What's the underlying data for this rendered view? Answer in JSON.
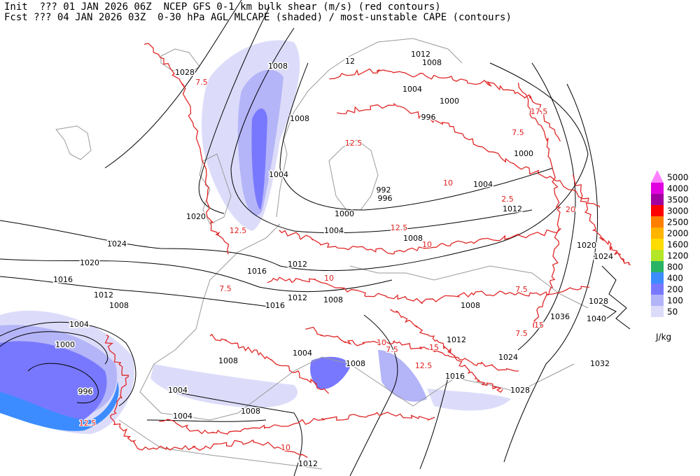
{
  "header": {
    "line1": "Init  ??? 01 JAN 2026 06Z  NCEP GFS 0-1 km bulk shear (m/s) (red contours)",
    "line2": "Fcst ??? 04 JAN 2026 03Z  0-30 hPa AGL MLCAPE (shaded) / most-unstable CAPE (contours)"
  },
  "legend": {
    "levels": [
      {
        "label": "5000",
        "color": "#ff80ff"
      },
      {
        "label": "4000",
        "color": "#e000e0"
      },
      {
        "label": "3500",
        "color": "#a000a0"
      },
      {
        "label": "3000",
        "color": "#ff0000"
      },
      {
        "label": "2500",
        "color": "#ff8000"
      },
      {
        "label": "2000",
        "color": "#ffb400"
      },
      {
        "label": "1600",
        "color": "#ffdc00"
      },
      {
        "label": "1200",
        "color": "#b4e628"
      },
      {
        "label": "800",
        "color": "#28b464"
      },
      {
        "label": "400",
        "color": "#3c8cff"
      },
      {
        "label": "200",
        "color": "#7878ff"
      },
      {
        "label": "100",
        "color": "#b4b4f8"
      },
      {
        "label": "50",
        "color": "#dcdcfa"
      }
    ],
    "unit": "J/kg"
  },
  "isobar_labels": [
    "1028",
    "1008",
    "1012",
    "1008",
    "1004",
    "1000",
    "996",
    "1008",
    "1004",
    "1000",
    "1004",
    "992",
    "996",
    "1012",
    "1020",
    "1000",
    "1004",
    "1008",
    "1024",
    "1020",
    "1024",
    "1020",
    "1016",
    "1012",
    "1016",
    "1012",
    "1012",
    "1008",
    "1016",
    "1008",
    "1008",
    "1028",
    "1036",
    "1040",
    "1004",
    "1000",
    "1012",
    "1004",
    "1008",
    "1008",
    "1024",
    "1032",
    "1016",
    "996",
    "1004",
    "1028",
    "1004",
    "1008",
    "1012",
    "12"
  ],
  "shear_labels": [
    "7.5",
    "12.5",
    "7.5",
    "17.5",
    "10",
    "12.5",
    "7.5",
    "10",
    "7.5",
    "12.5",
    "10",
    "7.5",
    "15",
    "10",
    "12.5",
    "2.5",
    "10",
    "7.5",
    "20",
    "12.5",
    "15"
  ]
}
